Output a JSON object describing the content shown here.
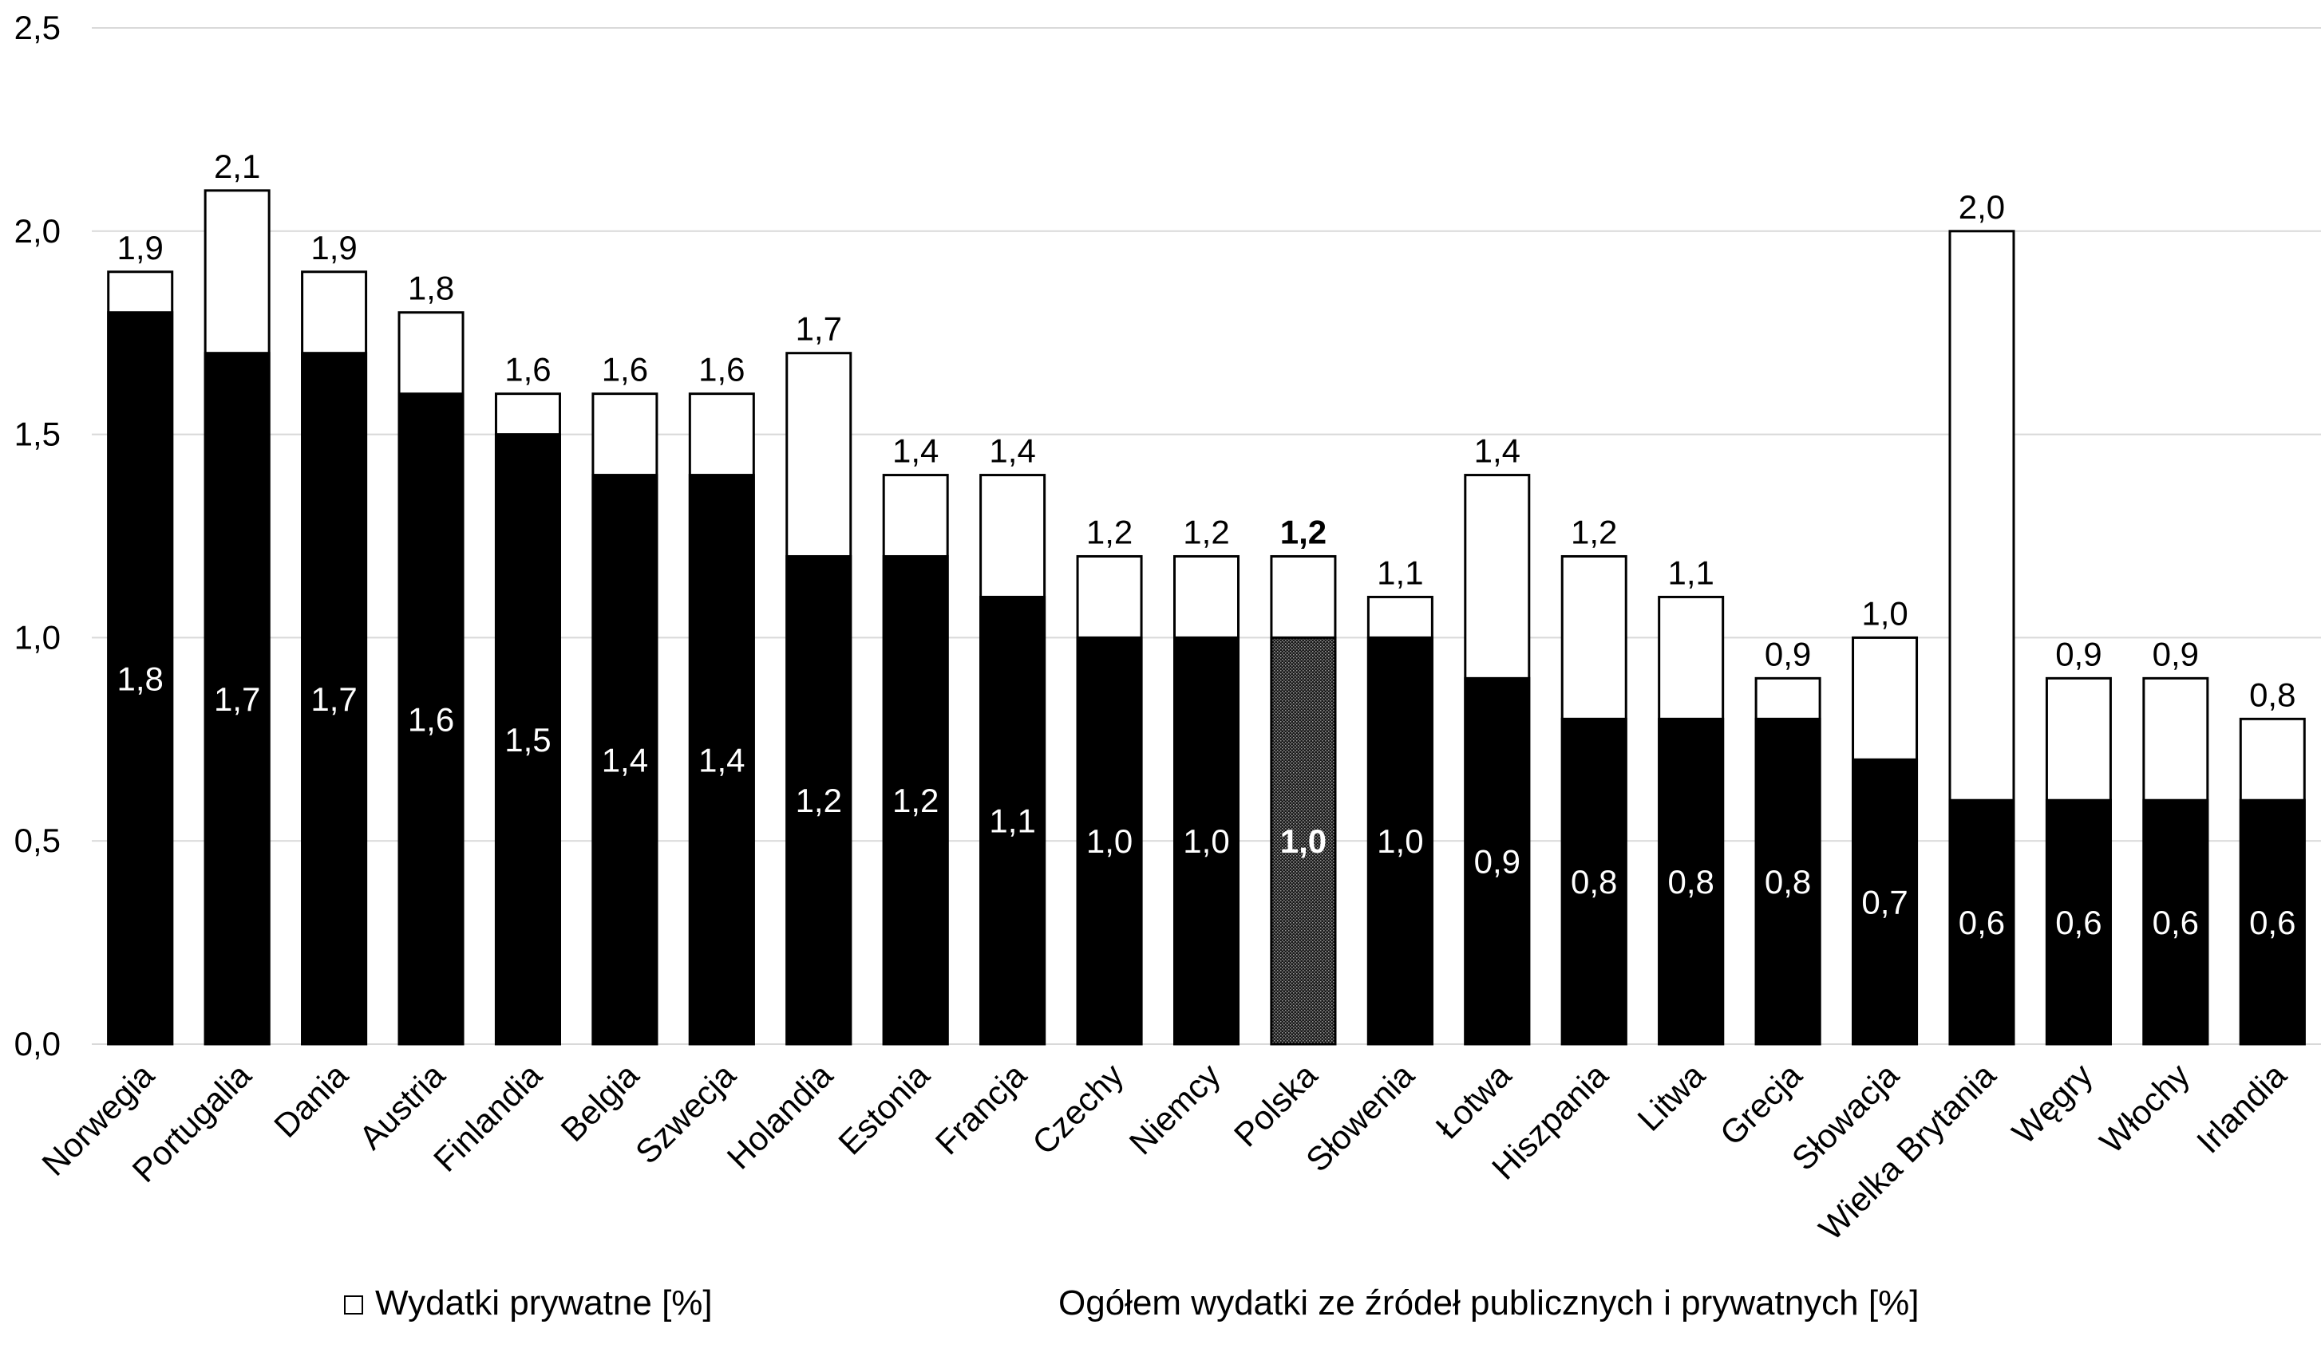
{
  "chart_data": {
    "type": "bar",
    "stacked": true,
    "ylim": [
      0.0,
      2.5
    ],
    "yticks": [
      "0,0",
      "0,5",
      "1,0",
      "1,5",
      "2,0",
      "2,5"
    ],
    "grid": "horizontal",
    "categories": [
      "Norwegia",
      "Portugalia",
      "Dania",
      "Austria",
      "Finlandia",
      "Belgia",
      "Szwecja",
      "Holandia",
      "Estonia",
      "Francja",
      "Czechy",
      "Niemcy",
      "Polska",
      "Słowenia",
      "Łotwa",
      "Hiszpania",
      "Litwa",
      "Grecja",
      "Słowacja",
      "Wielka Brytania",
      "Węgry",
      "Włochy",
      "Irlandia"
    ],
    "public_values": [
      1.8,
      1.7,
      1.7,
      1.6,
      1.5,
      1.4,
      1.4,
      1.2,
      1.2,
      1.1,
      1.0,
      1.0,
      1.0,
      1.0,
      0.9,
      0.8,
      0.8,
      0.8,
      0.7,
      0.6,
      0.6,
      0.6,
      0.6
    ],
    "total_values": [
      1.9,
      2.1,
      1.9,
      1.8,
      1.6,
      1.6,
      1.6,
      1.7,
      1.4,
      1.4,
      1.2,
      1.2,
      1.2,
      1.1,
      1.4,
      1.2,
      1.1,
      0.9,
      1.0,
      2.0,
      0.9,
      0.9,
      0.8
    ],
    "public_labels": [
      "1,8",
      "1,7",
      "1,7",
      "1,6",
      "1,5",
      "1,4",
      "1,4",
      "1,2",
      "1,2",
      "1,1",
      "1,0",
      "1,0",
      "1,0",
      "1,0",
      "0,9",
      "0,8",
      "0,8",
      "0,8",
      "0,7",
      "0,6",
      "0,6",
      "0,6",
      "0,6"
    ],
    "total_labels": [
      "1,9",
      "2,1",
      "1,9",
      "1,8",
      "1,6",
      "1,6",
      "1,6",
      "1,7",
      "1,4",
      "1,4",
      "1,2",
      "1,2",
      "1,2",
      "1,1",
      "1,4",
      "1,2",
      "1,1",
      "0,9",
      "1,0",
      "2,0",
      "0,9",
      "0,9",
      "0,8"
    ],
    "highlight_category": "Polska",
    "series": [
      {
        "name": "Wydatki prywatne [%]",
        "color": "#ffffff"
      },
      {
        "name": "Ogółem wydatki ze źródeł publicznych i prywatnych [%]",
        "color": "#000000"
      }
    ],
    "legend_position": "bottom"
  }
}
